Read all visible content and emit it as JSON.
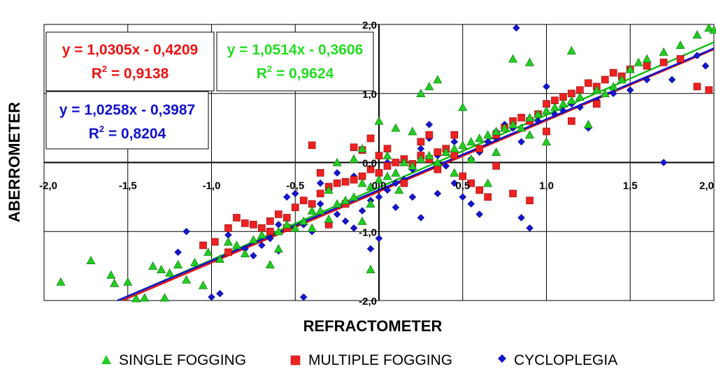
{
  "chart_data": {
    "type": "scatter",
    "xlabel": "REFRACTOMETER",
    "ylabel": "ABERROMETER",
    "xlim": [
      -2.0,
      2.0
    ],
    "ylim": [
      -2.0,
      2.0
    ],
    "grid": true,
    "x_ticks": [
      "-2,0",
      "-1,5",
      "-1,0",
      "-0,5",
      "0,0",
      "0,5",
      "1,0",
      "1,5",
      "2,0"
    ],
    "y_ticks": [
      "2,0",
      "1,0",
      "0,0",
      "-1,0",
      "-2,0"
    ],
    "legend_position": "bottom",
    "series": [
      {
        "name": "SINGLE FOGGING",
        "marker": "triangle",
        "color": "#00cc00",
        "fit": {
          "slope": 1.0514,
          "intercept": -0.3606
        },
        "equation": "y = 1,0514x - 0,3606",
        "r2_prefix": "R",
        "r2_sup": "2",
        "r2_value": " = 0,9624",
        "points": [
          [
            -1.9,
            -1.73
          ],
          [
            -1.72,
            -1.42
          ],
          [
            -1.6,
            -1.63
          ],
          [
            -1.58,
            -1.75
          ],
          [
            -1.5,
            -1.73
          ],
          [
            -1.45,
            -1.97
          ],
          [
            -1.4,
            -1.96
          ],
          [
            -1.35,
            -1.5
          ],
          [
            -1.3,
            -1.55
          ],
          [
            -1.28,
            -1.96
          ],
          [
            -1.2,
            -1.48
          ],
          [
            -1.15,
            -1.7
          ],
          [
            -1.1,
            -1.45
          ],
          [
            -1.05,
            -1.78
          ],
          [
            -1.02,
            -1.3
          ],
          [
            -0.95,
            -1.4
          ],
          [
            -0.9,
            -1.15
          ],
          [
            -0.85,
            -1.2
          ],
          [
            -0.8,
            -1.32
          ],
          [
            -0.75,
            -1.12
          ],
          [
            -0.7,
            -1.05
          ],
          [
            -0.65,
            -1.48
          ],
          [
            -0.6,
            -1.0
          ],
          [
            -0.55,
            -0.9
          ],
          [
            -0.5,
            -0.95
          ],
          [
            -0.45,
            -0.85
          ],
          [
            -0.4,
            -0.95
          ],
          [
            -0.35,
            -0.7
          ],
          [
            -0.3,
            -0.82
          ],
          [
            -0.25,
            -0.6
          ],
          [
            -0.2,
            -0.55
          ],
          [
            -0.15,
            -0.5
          ],
          [
            -0.1,
            -0.3
          ],
          [
            -0.05,
            -0.35
          ],
          [
            0.0,
            -0.25
          ],
          [
            0.05,
            -0.2
          ],
          [
            0.1,
            -0.15
          ],
          [
            0.15,
            0.0
          ],
          [
            0.2,
            -0.05
          ],
          [
            0.25,
            0.05
          ],
          [
            0.3,
            0.1
          ],
          [
            0.35,
            0.0
          ],
          [
            0.4,
            0.15
          ],
          [
            0.45,
            0.2
          ],
          [
            0.5,
            0.25
          ],
          [
            0.55,
            0.3
          ],
          [
            0.6,
            0.35
          ],
          [
            0.65,
            0.4
          ],
          [
            0.7,
            0.45
          ],
          [
            0.75,
            0.5
          ],
          [
            0.8,
            0.55
          ],
          [
            0.85,
            0.5
          ],
          [
            0.9,
            0.65
          ],
          [
            0.95,
            0.7
          ],
          [
            1.0,
            0.75
          ],
          [
            1.05,
            0.8
          ],
          [
            1.1,
            0.85
          ],
          [
            1.15,
            0.9
          ],
          [
            1.2,
            0.95
          ],
          [
            1.3,
            1.05
          ],
          [
            1.35,
            1.0
          ],
          [
            1.4,
            1.1
          ],
          [
            1.45,
            1.2
          ],
          [
            1.5,
            1.35
          ],
          [
            1.55,
            1.45
          ],
          [
            1.6,
            1.5
          ],
          [
            1.7,
            1.6
          ],
          [
            1.8,
            1.7
          ],
          [
            1.9,
            1.85
          ],
          [
            1.97,
            1.95
          ],
          [
            2.0,
            1.92
          ],
          [
            0.25,
            1.0
          ],
          [
            0.3,
            1.1
          ],
          [
            0.35,
            1.2
          ],
          [
            -0.25,
            0.0
          ],
          [
            -0.1,
            0.2
          ],
          [
            0.1,
            0.5
          ],
          [
            0.0,
            0.6
          ],
          [
            -0.05,
            -0.6
          ],
          [
            -0.1,
            -0.85
          ],
          [
            -0.05,
            -1.55
          ],
          [
            0.65,
            -0.3
          ],
          [
            0.8,
            1.5
          ],
          [
            0.9,
            1.45
          ],
          [
            0.5,
            0.8
          ],
          [
            1.15,
            1.62
          ],
          [
            0.2,
            0.45
          ],
          [
            -0.3,
            -0.4
          ],
          [
            -0.4,
            -0.7
          ],
          [
            0.55,
            0.05
          ],
          [
            0.7,
            0.15
          ],
          [
            1.0,
            0.3
          ],
          [
            1.25,
            0.55
          ],
          [
            0.9,
            0.4
          ],
          [
            0.45,
            -0.15
          ],
          [
            -0.15,
            0.05
          ],
          [
            0.05,
            0.1
          ],
          [
            0.12,
            -0.4
          ],
          [
            -0.6,
            -1.25
          ],
          [
            -1.25,
            -1.6
          ]
        ]
      },
      {
        "name": "MULTIPLE FOGGING",
        "marker": "square",
        "color": "#dd1111",
        "fit": {
          "slope": 1.0305,
          "intercept": -0.4209
        },
        "equation": "y = 1,0305x - 0,4209",
        "r2_prefix": "R",
        "r2_sup": "2",
        "r2_value": " = 0,9138",
        "points": [
          [
            -1.05,
            -1.2
          ],
          [
            -0.98,
            -1.15
          ],
          [
            -0.9,
            -0.95
          ],
          [
            -0.85,
            -0.8
          ],
          [
            -0.8,
            -0.88
          ],
          [
            -0.75,
            -0.9
          ],
          [
            -0.7,
            -0.95
          ],
          [
            -0.65,
            -0.85
          ],
          [
            -0.6,
            -0.75
          ],
          [
            -0.55,
            -0.8
          ],
          [
            -0.5,
            -0.65
          ],
          [
            -0.45,
            -0.55
          ],
          [
            -0.4,
            -0.6
          ],
          [
            -0.35,
            -0.45
          ],
          [
            -0.3,
            -0.35
          ],
          [
            -0.25,
            -0.3
          ],
          [
            -0.2,
            -0.28
          ],
          [
            -0.15,
            -0.25
          ],
          [
            -0.1,
            -0.2
          ],
          [
            -0.05,
            -0.1
          ],
          [
            0.0,
            -0.15
          ],
          [
            0.05,
            -0.05
          ],
          [
            0.1,
            0.0
          ],
          [
            0.15,
            0.05
          ],
          [
            0.2,
            -0.02
          ],
          [
            0.25,
            0.1
          ],
          [
            0.3,
            0.05
          ],
          [
            0.35,
            0.15
          ],
          [
            0.4,
            0.2
          ],
          [
            0.45,
            0.1
          ],
          [
            0.5,
            -0.2
          ],
          [
            0.55,
            -0.3
          ],
          [
            0.6,
            -0.4
          ],
          [
            0.65,
            -0.5
          ],
          [
            0.7,
            0.4
          ],
          [
            0.75,
            0.5
          ],
          [
            0.8,
            0.6
          ],
          [
            0.85,
            0.65
          ],
          [
            0.9,
            0.6
          ],
          [
            0.95,
            0.7
          ],
          [
            1.0,
            0.85
          ],
          [
            1.05,
            0.9
          ],
          [
            1.1,
            0.95
          ],
          [
            1.15,
            1.0
          ],
          [
            1.2,
            1.05
          ],
          [
            1.25,
            1.15
          ],
          [
            1.3,
            1.1
          ],
          [
            1.35,
            1.2
          ],
          [
            1.4,
            1.3
          ],
          [
            1.45,
            1.25
          ],
          [
            1.5,
            1.35
          ],
          [
            1.6,
            1.4
          ],
          [
            1.7,
            1.45
          ],
          [
            1.8,
            1.5
          ],
          [
            1.9,
            1.1
          ],
          [
            1.97,
            1.05
          ],
          [
            0.9,
            -0.55
          ],
          [
            0.8,
            -0.45
          ],
          [
            -0.05,
            0.35
          ],
          [
            -0.1,
            0.18
          ],
          [
            0.05,
            0.2
          ],
          [
            0.3,
            0.4
          ],
          [
            -0.4,
            0.25
          ],
          [
            -0.35,
            -0.15
          ],
          [
            -0.55,
            -0.95
          ],
          [
            -0.9,
            -1.3
          ],
          [
            -0.3,
            -0.9
          ],
          [
            0.15,
            -0.3
          ],
          [
            0.25,
            0.3
          ],
          [
            0.6,
            0.2
          ],
          [
            1.0,
            0.45
          ],
          [
            1.3,
            0.85
          ],
          [
            0.45,
            0.4
          ],
          [
            -0.2,
            -0.6
          ],
          [
            -0.65,
            -1.0
          ],
          [
            0.0,
            0.1
          ],
          [
            0.35,
            -0.1
          ],
          [
            1.15,
            0.6
          ],
          [
            0.7,
            -0.05
          ],
          [
            -0.15,
            0.22
          ]
        ]
      },
      {
        "name": "CYCLOPLEGIA",
        "marker": "diamond",
        "color": "#1111cc",
        "fit": {
          "slope": 1.0258,
          "intercept": -0.3987
        },
        "equation": "y = 1,0258x - 0,3987",
        "r2_prefix": "R",
        "r2_sup": "2",
        "r2_value": " = 0,8204",
        "points": [
          [
            -1.15,
            -1.0
          ],
          [
            -1.2,
            -1.3
          ],
          [
            -1.0,
            -1.95
          ],
          [
            -0.95,
            -1.9
          ],
          [
            -0.8,
            -1.25
          ],
          [
            -0.75,
            -1.35
          ],
          [
            -0.7,
            -1.2
          ],
          [
            -0.65,
            -1.1
          ],
          [
            -0.6,
            -1.28
          ],
          [
            -0.55,
            -0.5
          ],
          [
            -0.5,
            -0.45
          ],
          [
            -0.45,
            -0.9
          ],
          [
            -0.4,
            -1.0
          ],
          [
            -0.35,
            -0.3
          ],
          [
            -0.3,
            -0.4
          ],
          [
            -0.25,
            -0.75
          ],
          [
            -0.2,
            -0.85
          ],
          [
            -0.15,
            -0.95
          ],
          [
            -0.1,
            -0.7
          ],
          [
            -0.05,
            -0.55
          ],
          [
            0.0,
            -0.5
          ],
          [
            0.05,
            -0.4
          ],
          [
            0.1,
            -0.3
          ],
          [
            0.15,
            -0.25
          ],
          [
            0.2,
            -0.1
          ],
          [
            0.25,
            0.2
          ],
          [
            0.3,
            0.35
          ],
          [
            0.35,
            0.1
          ],
          [
            0.4,
            -0.05
          ],
          [
            0.45,
            -0.3
          ],
          [
            0.5,
            -0.5
          ],
          [
            0.55,
            -0.6
          ],
          [
            0.6,
            -0.75
          ],
          [
            0.65,
            0.3
          ],
          [
            0.7,
            0.45
          ],
          [
            0.75,
            0.55
          ],
          [
            0.8,
            0.5
          ],
          [
            0.85,
            -0.8
          ],
          [
            0.9,
            -0.95
          ],
          [
            0.95,
            0.6
          ],
          [
            1.0,
            1.1
          ],
          [
            1.05,
            0.7
          ],
          [
            1.1,
            0.75
          ],
          [
            1.15,
            0.85
          ],
          [
            1.2,
            0.8
          ],
          [
            1.3,
            0.9
          ],
          [
            1.4,
            1.0
          ],
          [
            1.5,
            1.05
          ],
          [
            1.6,
            1.2
          ],
          [
            1.7,
            0.0
          ],
          [
            1.75,
            1.2
          ],
          [
            1.8,
            1.5
          ],
          [
            1.9,
            1.55
          ],
          [
            1.95,
            1.4
          ],
          [
            0.82,
            1.95
          ],
          [
            -0.05,
            -1.25
          ],
          [
            0.0,
            -1.1
          ],
          [
            -0.45,
            -1.95
          ],
          [
            0.3,
            0.55
          ],
          [
            0.45,
            0.3
          ],
          [
            -0.15,
            -0.2
          ],
          [
            -0.35,
            -0.6
          ],
          [
            0.1,
            -0.65
          ],
          [
            0.2,
            -0.5
          ],
          [
            0.25,
            -0.8
          ],
          [
            0.55,
            0.05
          ],
          [
            0.6,
            0.15
          ],
          [
            0.7,
            0.35
          ],
          [
            0.85,
            0.3
          ],
          [
            1.25,
            0.5
          ],
          [
            -0.6,
            -0.9
          ],
          [
            -0.9,
            -1.05
          ],
          [
            -0.25,
            -0.15
          ],
          [
            0.05,
            0.0
          ],
          [
            0.35,
            -0.45
          ]
        ]
      }
    ]
  }
}
